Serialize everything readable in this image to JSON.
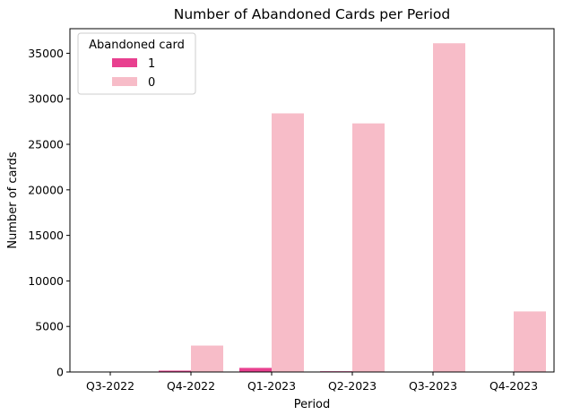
{
  "chart_data": {
    "type": "bar",
    "title": "Number of Abandoned Cards per Period",
    "xlabel": "Period",
    "ylabel": "Number of cards",
    "categories": [
      "Q3-2022",
      "Q4-2022",
      "Q1-2023",
      "Q2-2023",
      "Q3-2023",
      "Q4-2023"
    ],
    "series": [
      {
        "name": "1",
        "color": "#e8408f",
        "values": [
          0,
          150,
          450,
          80,
          0,
          0
        ]
      },
      {
        "name": "0",
        "color": "#f7bcc8",
        "values": [
          0,
          2900,
          28400,
          27300,
          36100,
          6650
        ]
      }
    ],
    "ylim": [
      0,
      37700
    ],
    "yticks": [
      0,
      5000,
      10000,
      15000,
      20000,
      25000,
      30000,
      35000
    ],
    "grid": false,
    "legend": {
      "title": "Abandoned card",
      "position": "top-left"
    }
  }
}
